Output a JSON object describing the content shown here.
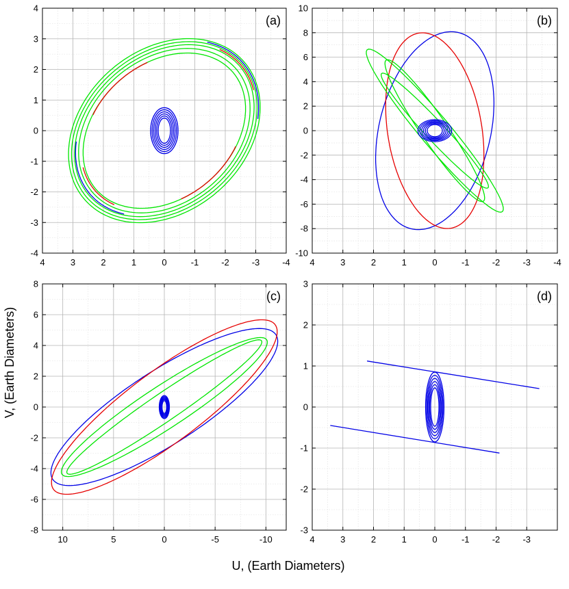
{
  "figure": {
    "xlabel": "U, (Earth Diameters)",
    "ylabel": "V, (Earth Diameters)"
  },
  "colors": {
    "blue": "#0000e6",
    "red": "#e60000",
    "green": "#00e600"
  },
  "chart_data": [
    {
      "type": "scatter",
      "panel_label": "(a)",
      "xlim": [
        4,
        -4
      ],
      "ylim": [
        -4,
        4
      ],
      "x_ticks": [
        4,
        3,
        2,
        1,
        0,
        -1,
        -2,
        -3,
        -4
      ],
      "y_ticks": [
        -4,
        -3,
        -2,
        -1,
        0,
        1,
        2,
        3,
        4
      ],
      "grid": true,
      "ellipses": [
        {
          "color": "green",
          "cx": 0,
          "cy": 0,
          "a": 3.45,
          "b": 2.65,
          "angle": -40
        },
        {
          "color": "green",
          "cx": 0,
          "cy": 0,
          "a": 3.35,
          "b": 2.55,
          "angle": -40
        },
        {
          "color": "green",
          "cx": 0,
          "cy": 0,
          "a": 3.25,
          "b": 2.45,
          "angle": -40
        },
        {
          "color": "green",
          "cx": 0,
          "cy": 0,
          "a": 3.1,
          "b": 2.35,
          "angle": -40
        },
        {
          "color": "green",
          "cx": 0,
          "cy": 0,
          "a": 2.95,
          "b": 2.2,
          "angle": -40
        }
      ],
      "arcs": [
        {
          "color": "blue",
          "cx": 0,
          "cy": 0,
          "a": 3.4,
          "b": 2.6,
          "angle": -40,
          "t0": 150,
          "t1": 220
        },
        {
          "color": "blue",
          "cx": 0,
          "cy": 0,
          "a": 3.2,
          "b": 2.45,
          "angle": -40,
          "t0": 330,
          "t1": 400
        },
        {
          "color": "red",
          "cx": 0,
          "cy": 0,
          "a": 3.3,
          "b": 2.5,
          "angle": -40,
          "t0": 160,
          "t1": 200
        },
        {
          "color": "red",
          "cx": 0,
          "cy": 0,
          "a": 3.0,
          "b": 2.3,
          "angle": -40,
          "t0": 340,
          "t1": 380
        },
        {
          "color": "red",
          "cx": 0,
          "cy": 0,
          "a": 2.9,
          "b": 2.2,
          "angle": -40,
          "t0": 60,
          "t1": 110
        },
        {
          "color": "red",
          "cx": 0,
          "cy": 0,
          "a": 2.9,
          "b": 2.2,
          "angle": -40,
          "t0": 240,
          "t1": 290
        }
      ],
      "center_cluster": {
        "color": "blue",
        "cx": 0,
        "cy": 0,
        "rx": 0.45,
        "ry": 0.75
      }
    },
    {
      "type": "scatter",
      "panel_label": "(b)",
      "xlim": [
        4,
        -4
      ],
      "ylim": [
        -10,
        10
      ],
      "x_ticks": [
        4,
        3,
        2,
        1,
        0,
        -1,
        -2,
        -3,
        -4
      ],
      "y_ticks": [
        -10,
        -8,
        -6,
        -4,
        -2,
        0,
        2,
        4,
        6,
        8,
        10
      ],
      "grid": true,
      "ellipses": [
        {
          "color": "blue",
          "cx": 0,
          "cy": 0,
          "a": 8.1,
          "b": 1.85,
          "angle": 94
        },
        {
          "color": "red",
          "cx": 0,
          "cy": 0,
          "a": 8.0,
          "b": 1.55,
          "angle": 87
        }
      ],
      "arcs": [
        {
          "color": "green",
          "cx": 0,
          "cy": 0,
          "a": 7.0,
          "b": 0.6,
          "angle": 72,
          "t0": 0,
          "t1": 360
        },
        {
          "color": "green",
          "cx": 0,
          "cy": 0,
          "a": 6.0,
          "b": 0.5,
          "angle": 75,
          "t0": 0,
          "t1": 360
        },
        {
          "color": "green",
          "cx": 0,
          "cy": 0,
          "a": 5.0,
          "b": 0.4,
          "angle": 70,
          "t0": 0,
          "t1": 360
        }
      ],
      "center_cluster": {
        "color": "blue",
        "cx": 0,
        "cy": 0,
        "rx": 0.55,
        "ry": 0.9
      }
    },
    {
      "type": "scatter",
      "panel_label": "(c)",
      "xlim": [
        12,
        -12
      ],
      "ylim": [
        -8,
        8
      ],
      "x_ticks": [
        10,
        5,
        0,
        -5,
        -10
      ],
      "y_ticks": [
        -8,
        -6,
        -4,
        -2,
        0,
        2,
        4,
        6,
        8
      ],
      "grid": true,
      "ellipses": [
        {
          "color": "blue",
          "cx": 0,
          "cy": 0,
          "a": 12.0,
          "b": 2.6,
          "angle": -22
        },
        {
          "color": "red",
          "cx": 0,
          "cy": 0,
          "a": 12.2,
          "b": 2.6,
          "angle": -25
        },
        {
          "color": "green",
          "cx": 0,
          "cy": 0,
          "a": 11.0,
          "b": 1.5,
          "angle": -23
        },
        {
          "color": "green",
          "cx": 0,
          "cy": 0,
          "a": 10.5,
          "b": 1.0,
          "angle": -24
        }
      ],
      "arcs": [],
      "center_cluster": {
        "color": "blue",
        "cx": 0,
        "cy": 0,
        "rx": 0.5,
        "ry": 0.75
      }
    },
    {
      "type": "scatter",
      "panel_label": "(d)",
      "xlim": [
        4,
        -4
      ],
      "ylim": [
        -3,
        3
      ],
      "x_ticks": [
        4,
        3,
        2,
        1,
        0,
        -1,
        -2,
        -3
      ],
      "y_ticks": [
        -3,
        -2,
        -1,
        0,
        1,
        2,
        3
      ],
      "grid": true,
      "lines": [
        {
          "color": "blue",
          "x": [
            2.2,
            -3.4
          ],
          "y": [
            1.12,
            0.45
          ]
        },
        {
          "color": "blue",
          "x": [
            3.4,
            -2.1
          ],
          "y": [
            -0.45,
            -1.12
          ]
        }
      ],
      "arcs": [],
      "center_cluster": {
        "color": "blue",
        "cx": 0,
        "cy": 0,
        "rx": 0.3,
        "ry": 0.85
      }
    }
  ]
}
